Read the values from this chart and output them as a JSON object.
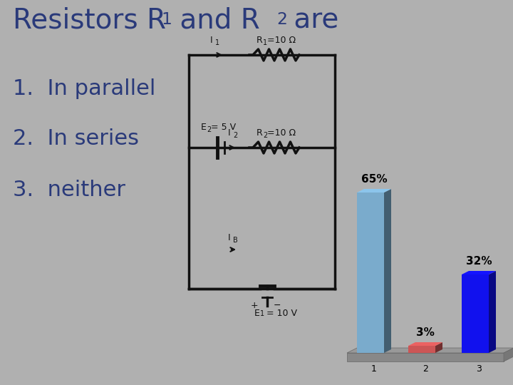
{
  "background_color": "#b0b0b0",
  "title_color": "#2a3a7a",
  "item_color": "#2a3a7a",
  "items": [
    "1.  In parallel",
    "2.  In series",
    "3.  neither"
  ],
  "circuit_color": "#111111",
  "bar_categories": [
    "1",
    "2",
    "3"
  ],
  "bar_values": [
    65,
    3,
    32
  ],
  "bar_colors": [
    "#7aabcc",
    "#cc5555",
    "#1111ee"
  ],
  "bar_labels": [
    "65%",
    "3%",
    "32%"
  ]
}
